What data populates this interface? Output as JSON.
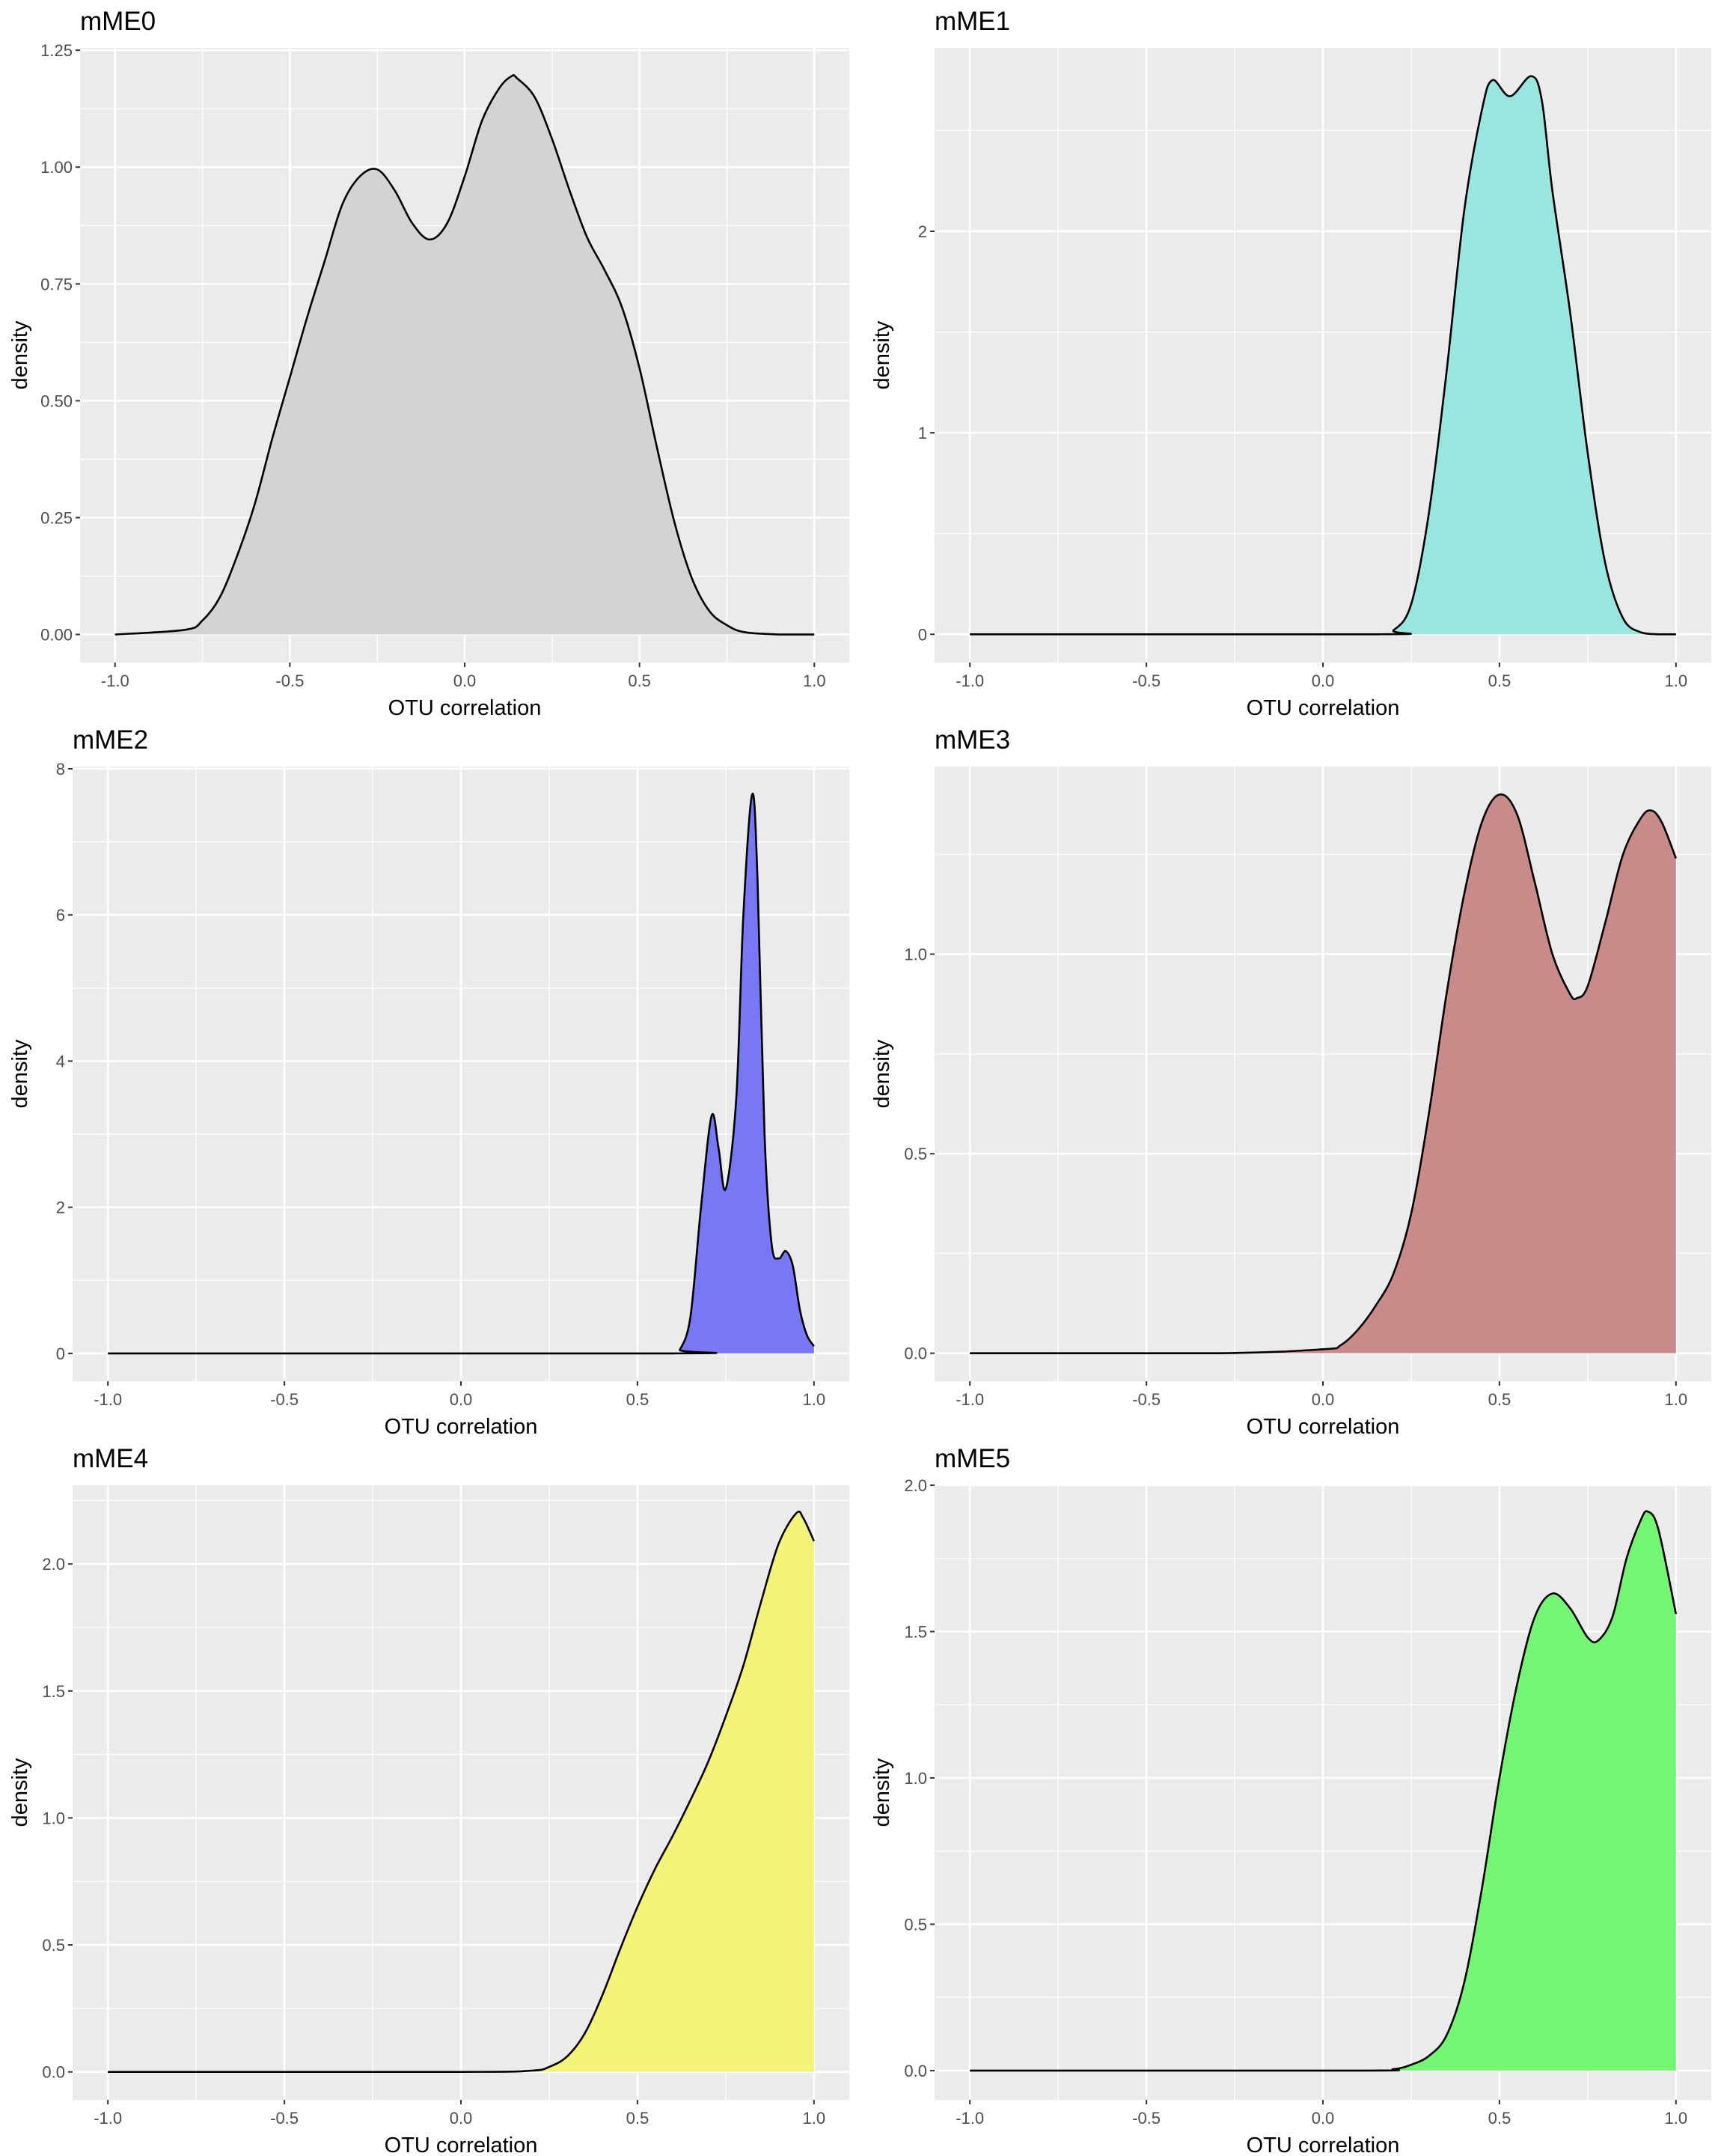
{
  "chart_data": [
    {
      "type": "area",
      "title": "mME0",
      "xlabel": "OTU correlation",
      "ylabel": "density",
      "fill": "#d3d3d3",
      "xlim": [
        -1.1,
        1.1
      ],
      "ylim": [
        -0.06,
        1.255
      ],
      "grid": true,
      "xticks": [
        -1,
        -0.5,
        0,
        0.5,
        1
      ],
      "xtick_labels": [
        "-1.0",
        "-0.5",
        "0.0",
        "0.5",
        "1.0"
      ],
      "yticks": [
        0,
        0.25,
        0.5,
        0.75,
        1,
        1.25
      ],
      "ytick_labels": [
        "0.00",
        "0.25",
        "0.50",
        "0.75",
        "1.00",
        "1.25"
      ],
      "x": [
        -1,
        -0.8,
        -0.75,
        -0.7,
        -0.65,
        -0.6,
        -0.55,
        -0.5,
        -0.45,
        -0.4,
        -0.35,
        -0.3,
        -0.25,
        -0.2,
        -0.15,
        -0.1,
        -0.05,
        0,
        0.05,
        0.1,
        0.135,
        0.15,
        0.2,
        0.25,
        0.3,
        0.35,
        0.4,
        0.45,
        0.5,
        0.55,
        0.6,
        0.65,
        0.7,
        0.75,
        0.8,
        0.9,
        1
      ],
      "y": [
        0,
        0.01,
        0.03,
        0.08,
        0.17,
        0.28,
        0.42,
        0.55,
        0.68,
        0.8,
        0.92,
        0.98,
        0.995,
        0.95,
        0.88,
        0.845,
        0.88,
        0.98,
        1.1,
        1.17,
        1.195,
        1.19,
        1.15,
        1.06,
        0.95,
        0.85,
        0.78,
        0.7,
        0.57,
        0.4,
        0.24,
        0.12,
        0.05,
        0.02,
        0.005,
        0,
        0
      ]
    },
    {
      "type": "area",
      "title": "mME1",
      "xlabel": "OTU correlation",
      "ylabel": "density",
      "fill": "#98e6dd",
      "xlim": [
        -1.1,
        1.1
      ],
      "ylim": [
        -0.14,
        2.91
      ],
      "grid": true,
      "xticks": [
        -1,
        -0.5,
        0,
        0.5,
        1
      ],
      "xtick_labels": [
        "-1.0",
        "-0.5",
        "0.0",
        "0.5",
        "1.0"
      ],
      "yticks": [
        0,
        1,
        2
      ],
      "ytick_labels": [
        "0",
        "1",
        "2"
      ],
      "x": [
        -1,
        0.15,
        0.2,
        0.25,
        0.3,
        0.35,
        0.4,
        0.45,
        0.48,
        0.53,
        0.59,
        0.62,
        0.65,
        0.7,
        0.75,
        0.8,
        0.85,
        0.9,
        0.95,
        1
      ],
      "y": [
        0,
        0,
        0.02,
        0.15,
        0.6,
        1.3,
        2.1,
        2.6,
        2.75,
        2.67,
        2.77,
        2.65,
        2.2,
        1.6,
        0.9,
        0.35,
        0.08,
        0.01,
        0,
        0
      ]
    },
    {
      "type": "area",
      "title": "mME2",
      "xlabel": "OTU correlation",
      "ylabel": "density",
      "fill": "#7878f5",
      "xlim": [
        -1.1,
        1.1
      ],
      "ylim": [
        -0.38,
        8.03
      ],
      "grid": true,
      "xticks": [
        -1,
        -0.5,
        0,
        0.5,
        1
      ],
      "xtick_labels": [
        "-1.0",
        "-0.5",
        "0.0",
        "0.5",
        "1.0"
      ],
      "yticks": [
        0,
        2,
        4,
        6,
        8
      ],
      "ytick_labels": [
        "0",
        "2",
        "4",
        "6",
        "8"
      ],
      "x": [
        -1,
        0.6,
        0.62,
        0.65,
        0.68,
        0.71,
        0.73,
        0.75,
        0.78,
        0.8,
        0.825,
        0.84,
        0.86,
        0.88,
        0.9,
        0.92,
        0.94,
        0.96,
        0.98,
        1
      ],
      "y": [
        0,
        0,
        0.05,
        0.5,
        2,
        3.25,
        2.8,
        2.25,
        3.5,
        6,
        7.65,
        6.5,
        3,
        1.5,
        1.3,
        1.4,
        1.2,
        0.6,
        0.25,
        0.1
      ]
    },
    {
      "type": "area",
      "title": "mME3",
      "xlabel": "OTU correlation",
      "ylabel": "density",
      "fill": "#c98a8a",
      "xlim": [
        -1.1,
        1.1
      ],
      "ylim": [
        -0.07,
        1.47
      ],
      "grid": true,
      "xticks": [
        -1,
        -0.5,
        0,
        0.5,
        1
      ],
      "xtick_labels": [
        "-1.0",
        "-0.5",
        "0.0",
        "0.5",
        "1.0"
      ],
      "yticks": [
        0,
        0.5,
        1
      ],
      "ytick_labels": [
        "0.0",
        "0.5",
        "1.0"
      ],
      "x": [
        -1,
        -0.3,
        0,
        0.05,
        0.1,
        0.15,
        0.2,
        0.25,
        0.3,
        0.35,
        0.4,
        0.45,
        0.5,
        0.55,
        0.6,
        0.65,
        0.7,
        0.72,
        0.75,
        0.8,
        0.85,
        0.9,
        0.93,
        0.96,
        1
      ],
      "y": [
        0,
        0,
        0.01,
        0.02,
        0.06,
        0.12,
        0.2,
        0.35,
        0.6,
        0.9,
        1.15,
        1.33,
        1.4,
        1.35,
        1.18,
        1,
        0.9,
        0.89,
        0.92,
        1.08,
        1.25,
        1.34,
        1.36,
        1.33,
        1.24
      ]
    },
    {
      "type": "area",
      "title": "mME4",
      "xlabel": "OTU correlation",
      "ylabel": "density",
      "fill": "#f3f378",
      "xlim": [
        -1.1,
        1.1
      ],
      "ylim": [
        -0.11,
        2.31
      ],
      "grid": true,
      "xticks": [
        -1,
        -0.5,
        0,
        0.5,
        1
      ],
      "xtick_labels": [
        "-1.0",
        "-0.5",
        "0.0",
        "0.5",
        "1.0"
      ],
      "yticks": [
        0,
        0.5,
        1,
        1.5,
        2
      ],
      "ytick_labels": [
        "0.0",
        "0.5",
        "1.0",
        "1.5",
        "2.0"
      ],
      "x": [
        -1,
        0,
        0.2,
        0.25,
        0.3,
        0.35,
        0.4,
        0.45,
        0.5,
        0.55,
        0.6,
        0.65,
        0.7,
        0.75,
        0.8,
        0.85,
        0.9,
        0.95,
        0.97,
        1
      ],
      "y": [
        0,
        0,
        0.005,
        0.02,
        0.06,
        0.15,
        0.3,
        0.48,
        0.65,
        0.8,
        0.93,
        1.07,
        1.22,
        1.4,
        1.6,
        1.85,
        2.08,
        2.2,
        2.18,
        2.09
      ]
    },
    {
      "type": "area",
      "title": "mME5",
      "xlabel": "OTU correlation",
      "ylabel": "density",
      "fill": "#74f574",
      "xlim": [
        -1.1,
        1.1
      ],
      "ylim": [
        -0.1,
        2.0
      ],
      "grid": true,
      "xticks": [
        -1,
        -0.5,
        0,
        0.5,
        1
      ],
      "xtick_labels": [
        "-1.0",
        "-0.5",
        "0.0",
        "0.5",
        "1.0"
      ],
      "yticks": [
        0,
        0.5,
        1,
        1.5,
        2
      ],
      "ytick_labels": [
        "0.0",
        "0.5",
        "1.0",
        "1.5",
        "2.0"
      ],
      "x": [
        -1,
        0.1,
        0.2,
        0.25,
        0.3,
        0.35,
        0.4,
        0.45,
        0.5,
        0.55,
        0.6,
        0.65,
        0.7,
        0.75,
        0.78,
        0.82,
        0.86,
        0.9,
        0.92,
        0.95,
        1
      ],
      "y": [
        0,
        0,
        0.005,
        0.02,
        0.05,
        0.12,
        0.3,
        0.62,
        1,
        1.32,
        1.55,
        1.63,
        1.58,
        1.48,
        1.47,
        1.55,
        1.75,
        1.88,
        1.91,
        1.85,
        1.56
      ]
    }
  ]
}
